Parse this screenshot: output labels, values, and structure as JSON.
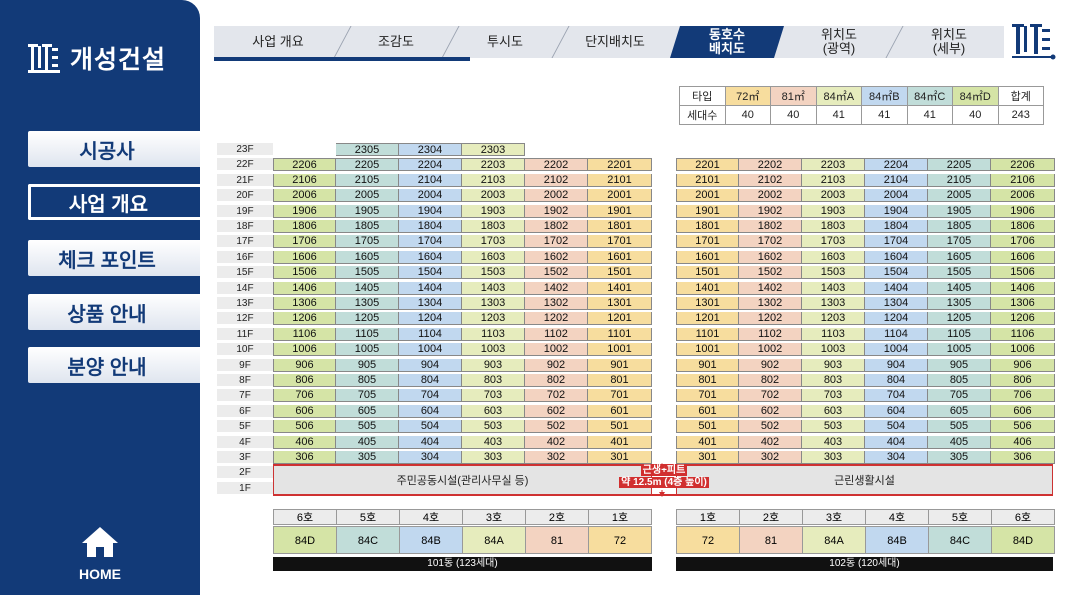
{
  "brand": {
    "name": "개성건설"
  },
  "sidebar": {
    "items": [
      {
        "label": "시공사",
        "active": false
      },
      {
        "label": "사업 개요",
        "active": true
      },
      {
        "label": "체크 포인트",
        "active": false
      },
      {
        "label": "상품 안내",
        "active": false
      },
      {
        "label": "분양 안내",
        "active": false
      }
    ],
    "home_label": "HOME"
  },
  "topnav": {
    "tabs": [
      {
        "label": "사업 개요"
      },
      {
        "label": "조감도"
      },
      {
        "label": "투시도"
      },
      {
        "label": "단지배치도"
      },
      {
        "label": "동호수\n배치도",
        "active": true
      },
      {
        "label": "위치도\n(광역)"
      },
      {
        "label": "위치도\n(세부)"
      }
    ]
  },
  "summary": {
    "header_label": "타입",
    "count_label": "세대수",
    "types": [
      "72㎡",
      "81㎡",
      "84㎡A",
      "84㎡B",
      "84㎡C",
      "84㎡D"
    ],
    "total_label": "합계",
    "counts": [
      "40",
      "40",
      "41",
      "41",
      "41",
      "40"
    ],
    "total": "243"
  },
  "floors": [
    "23F",
    "22F",
    "21F",
    "20F",
    "19F",
    "18F",
    "17F",
    "16F",
    "15F",
    "14F",
    "13F",
    "12F",
    "11F",
    "10F",
    "9F",
    "8F",
    "7F",
    "6F",
    "5F",
    "4F",
    "3F",
    "2F",
    "1F"
  ],
  "building101": {
    "ho_labels": [
      "6호",
      "5호",
      "4호",
      "3호",
      "2호",
      "1호"
    ],
    "types": [
      "84D",
      "84C",
      "84B",
      "84A",
      "81",
      "72"
    ],
    "columns": [
      "6",
      "5",
      "4",
      "3",
      "2",
      "1"
    ],
    "top_floor_23": [
      "2305",
      "2304",
      "2303"
    ],
    "commercial": "주민공동시설(관리사무실 등)",
    "name": "101동 (123세대)"
  },
  "building102": {
    "ho_labels": [
      "1호",
      "2호",
      "3호",
      "4호",
      "5호",
      "6호"
    ],
    "types": [
      "72",
      "81",
      "84A",
      "84B",
      "84C",
      "84D"
    ],
    "columns": [
      "1",
      "2",
      "3",
      "4",
      "5",
      "6"
    ],
    "commercial": "근린생활시설",
    "name": "102동 (120세대)"
  },
  "height_note": {
    "line1": "근생+피트",
    "line2": "약 12.5m (4층 높이)"
  },
  "colors": {
    "primary": "#123a78",
    "accent_red": "#d12f2f"
  }
}
